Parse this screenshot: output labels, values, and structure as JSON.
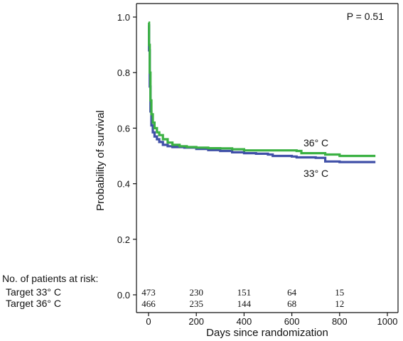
{
  "chart_data": {
    "type": "line",
    "subtype": "kaplan-meier step curve",
    "title": "",
    "xlabel": "Days since randomization",
    "ylabel": "Probability of survival",
    "xlim": [
      0,
      1000
    ],
    "ylim": [
      0.0,
      1.0
    ],
    "x_ticks": [
      "0",
      "200",
      "400",
      "600",
      "800",
      "1000"
    ],
    "y_ticks": [
      "0.0",
      "0.2",
      "0.4",
      "0.6",
      "0.8",
      "1.0"
    ],
    "annotation": "P = 0.51",
    "series": [
      {
        "name": "36° C",
        "color": "#3bb143",
        "points": [
          [
            0,
            0.98
          ],
          [
            2,
            0.9
          ],
          [
            5,
            0.8
          ],
          [
            8,
            0.7
          ],
          [
            12,
            0.65
          ],
          [
            18,
            0.62
          ],
          [
            25,
            0.6
          ],
          [
            35,
            0.585
          ],
          [
            45,
            0.575
          ],
          [
            60,
            0.56
          ],
          [
            80,
            0.548
          ],
          [
            100,
            0.54
          ],
          [
            130,
            0.535
          ],
          [
            160,
            0.532
          ],
          [
            200,
            0.53
          ],
          [
            250,
            0.528
          ],
          [
            300,
            0.527
          ],
          [
            350,
            0.524
          ],
          [
            400,
            0.52
          ],
          [
            500,
            0.52
          ],
          [
            620,
            0.518
          ],
          [
            640,
            0.51
          ],
          [
            740,
            0.505
          ],
          [
            800,
            0.5
          ],
          [
            950,
            0.5
          ]
        ]
      },
      {
        "name": "33° C",
        "color": "#4050a8",
        "points": [
          [
            0,
            0.97
          ],
          [
            2,
            0.88
          ],
          [
            5,
            0.75
          ],
          [
            8,
            0.66
          ],
          [
            12,
            0.61
          ],
          [
            18,
            0.585
          ],
          [
            25,
            0.57
          ],
          [
            35,
            0.56
          ],
          [
            45,
            0.55
          ],
          [
            60,
            0.54
          ],
          [
            80,
            0.535
          ],
          [
            100,
            0.532
          ],
          [
            150,
            0.53
          ],
          [
            200,
            0.525
          ],
          [
            250,
            0.521
          ],
          [
            300,
            0.518
          ],
          [
            350,
            0.513
          ],
          [
            400,
            0.51
          ],
          [
            450,
            0.508
          ],
          [
            500,
            0.505
          ],
          [
            520,
            0.5
          ],
          [
            600,
            0.498
          ],
          [
            620,
            0.495
          ],
          [
            700,
            0.493
          ],
          [
            740,
            0.48
          ],
          [
            800,
            0.478
          ],
          [
            950,
            0.478
          ]
        ]
      }
    ]
  },
  "risk_table": {
    "header": "No. of patients at risk:",
    "rows": [
      {
        "label": "Target 33° C",
        "counts": [
          "473",
          "230",
          "151",
          "64",
          "15"
        ]
      },
      {
        "label": "Target 36° C",
        "counts": [
          "466",
          "235",
          "144",
          "68",
          "12"
        ]
      }
    ]
  }
}
